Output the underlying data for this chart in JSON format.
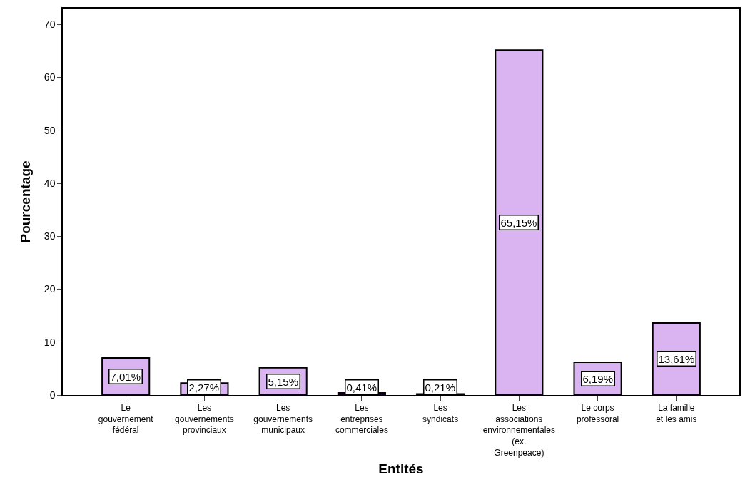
{
  "chart_data": {
    "type": "bar",
    "xlabel": "Entités",
    "ylabel": "Pourcentage",
    "categories": [
      "Le gouvernement fédéral",
      "Les gouvernements provinciaux",
      "Les gouvernements municipaux",
      "Les entreprises commerciales",
      "Les syndicats",
      "Les associations environnementales (ex. Greenpeace)",
      "Le corps professoral",
      "La famille et les amis"
    ],
    "values": [
      7.01,
      2.27,
      5.15,
      0.41,
      0.21,
      65.15,
      6.19,
      13.61
    ],
    "value_labels": [
      "7,01%",
      "2,27%",
      "5,15%",
      "0,41%",
      "0,21%",
      "65,15%",
      "6,19%",
      "13,61%"
    ],
    "color": "#dab4f0",
    "ylim": [
      0,
      73
    ],
    "yticks": [
      0,
      10,
      20,
      30,
      40,
      50,
      60,
      70
    ],
    "grid": false
  }
}
